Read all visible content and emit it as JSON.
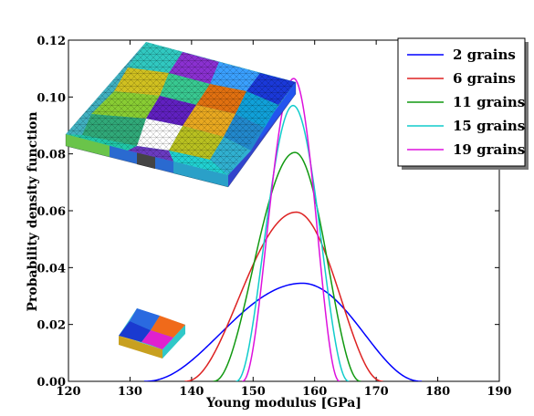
{
  "chart_data": {
    "type": "line",
    "xlabel": "Young modulus [GPa]",
    "ylabel": "Probability density function",
    "xlim": [
      120,
      190
    ],
    "ylim": [
      0,
      0.12
    ],
    "xticks": [
      120,
      130,
      140,
      150,
      160,
      170,
      180,
      190
    ],
    "yticks": [
      0,
      0.02,
      0.04,
      0.06,
      0.08,
      0.1,
      0.12
    ],
    "xtick_labels": [
      "120",
      "130",
      "140",
      "150",
      "160",
      "170",
      "180",
      "190"
    ],
    "ytick_labels": [
      "0.00",
      "0.02",
      "0.04",
      "0.06",
      "0.08",
      "0.10",
      "0.12"
    ],
    "grid": false,
    "legend_position": "top-right",
    "series": [
      {
        "name": "2 grains",
        "color": "#0000ff",
        "mean": 158.0,
        "peak": 0.0345,
        "support": [
          132.3,
          177.4
        ]
      },
      {
        "name": "6 grains",
        "color": "#dd2222",
        "mean": 157.0,
        "peak": 0.0595,
        "support": [
          138.9,
          171.1
        ]
      },
      {
        "name": "11 grains",
        "color": "#119911",
        "mean": 156.8,
        "peak": 0.0805,
        "support": [
          143.5,
          167.5
        ]
      },
      {
        "name": "15 grains",
        "color": "#11cccc",
        "mean": 156.5,
        "peak": 0.097,
        "support": [
          147.2,
          165.6
        ]
      },
      {
        "name": "19 grains",
        "color": "#dd11dd",
        "mean": 156.6,
        "peak": 0.1065,
        "support": [
          148.2,
          164.1
        ]
      }
    ],
    "insets": [
      {
        "name": "19-grain microstructure mesh"
      },
      {
        "name": "6-grain microstructure mesh"
      }
    ]
  }
}
